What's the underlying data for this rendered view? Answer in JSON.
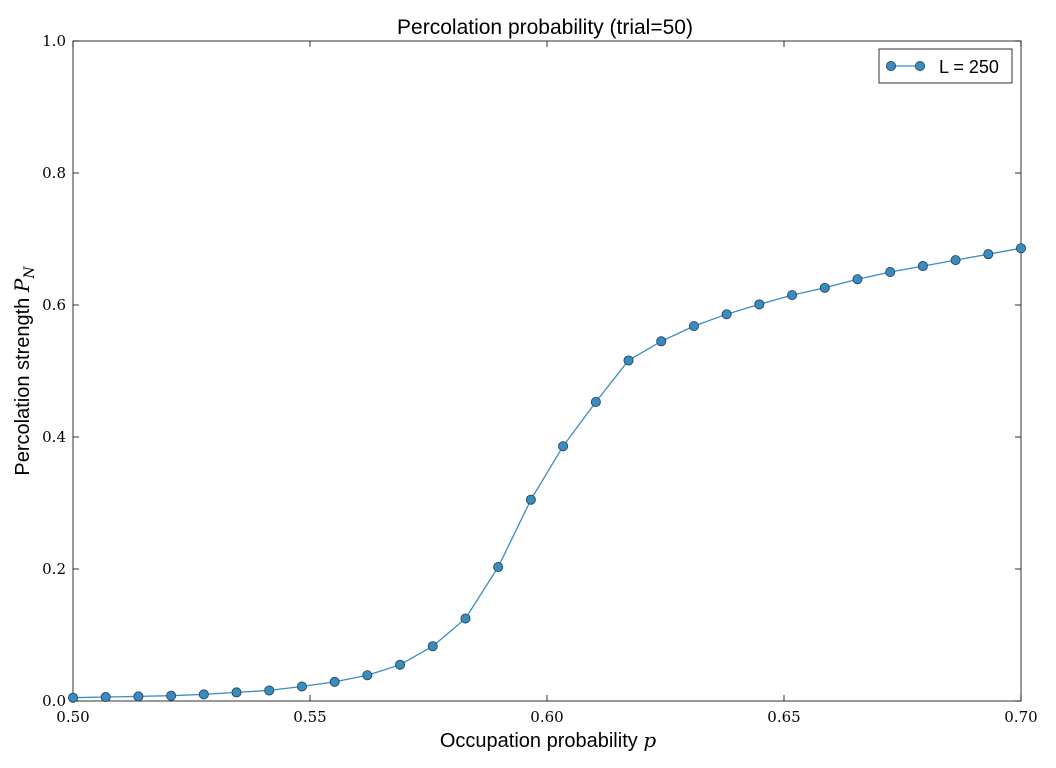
{
  "chart_data": {
    "type": "line",
    "title": "Percolation probability (trial=50)",
    "xlabel": "Occupation probability",
    "xlabel_symbol": "p",
    "ylabel": "Percolation strength",
    "ylabel_symbol": "P",
    "ylabel_subscript": "N",
    "xlim": [
      0.5,
      0.7
    ],
    "ylim": [
      0.0,
      1.0
    ],
    "xticks": [
      "0.50",
      "0.55",
      "0.60",
      "0.65",
      "0.70"
    ],
    "yticks": [
      "0.0",
      "0.2",
      "0.4",
      "0.6",
      "0.8",
      "1.0"
    ],
    "grid": false,
    "legend_position": "top-right",
    "series": [
      {
        "name": "L = 250",
        "color": "#3a8cc0",
        "marker": "circle",
        "x": [
          0.5,
          0.5069,
          0.5138,
          0.5207,
          0.5276,
          0.5345,
          0.5414,
          0.5483,
          0.5552,
          0.5621,
          0.569,
          0.5759,
          0.5828,
          0.5897,
          0.5966,
          0.6034,
          0.6103,
          0.6172,
          0.6241,
          0.631,
          0.6379,
          0.6448,
          0.6517,
          0.6586,
          0.6655,
          0.6724,
          0.6793,
          0.6862,
          0.6931,
          0.7
        ],
        "y": [
          0.005,
          0.006,
          0.007,
          0.008,
          0.01,
          0.013,
          0.016,
          0.022,
          0.029,
          0.039,
          0.055,
          0.083,
          0.125,
          0.203,
          0.305,
          0.386,
          0.453,
          0.516,
          0.545,
          0.568,
          0.586,
          0.601,
          0.615,
          0.626,
          0.639,
          0.65,
          0.659,
          0.668,
          0.677,
          0.686
        ]
      }
    ]
  }
}
